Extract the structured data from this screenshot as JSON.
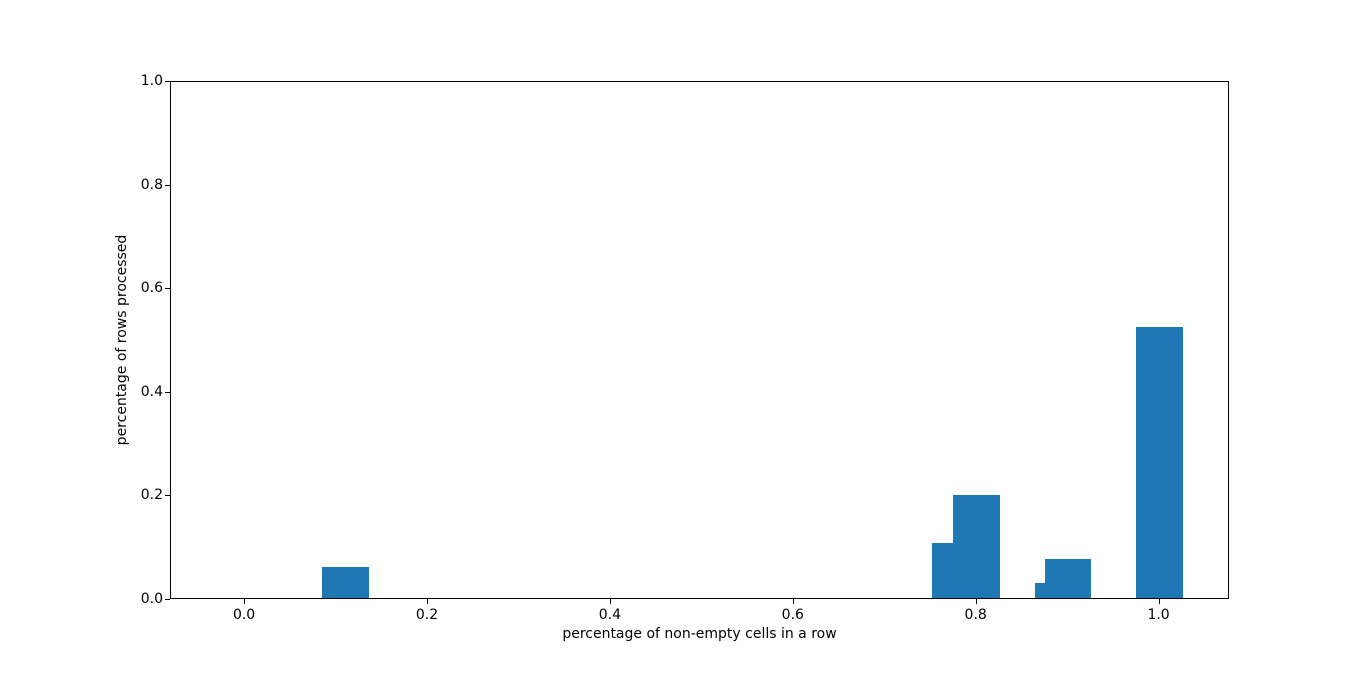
{
  "chart_data": {
    "type": "bar",
    "title": "",
    "xlabel": "percentage of non-empty cells in a row",
    "ylabel": "percentage of rows processed",
    "xlim": [
      -0.081,
      1.077
    ],
    "ylim": [
      0.0,
      1.0
    ],
    "grid": false,
    "legend": null,
    "background_color": "#ffffff",
    "bar_color": "#1f77b4",
    "axis_color": "#000000",
    "x_ticks": {
      "values": [
        0.0,
        0.2,
        0.4,
        0.6,
        0.8,
        1.0
      ],
      "labels": [
        "0.0",
        "0.2",
        "0.4",
        "0.6",
        "0.8",
        "1.0"
      ]
    },
    "y_ticks": {
      "values": [
        0.0,
        0.2,
        0.4,
        0.6,
        0.8,
        1.0
      ],
      "labels": [
        "0.0",
        "0.2",
        "0.4",
        "0.6",
        "0.8",
        "1.0"
      ]
    },
    "bars": [
      {
        "x": 0.11,
        "width": 0.051,
        "height": 0.06
      },
      {
        "x": 0.777,
        "width": 0.051,
        "height": 0.106
      },
      {
        "x": 0.8,
        "width": 0.051,
        "height": 0.199
      },
      {
        "x": 0.889,
        "width": 0.051,
        "height": 0.029
      },
      {
        "x": 0.9,
        "width": 0.051,
        "height": 0.075
      },
      {
        "x": 1.0,
        "width": 0.051,
        "height": 0.523
      }
    ]
  }
}
